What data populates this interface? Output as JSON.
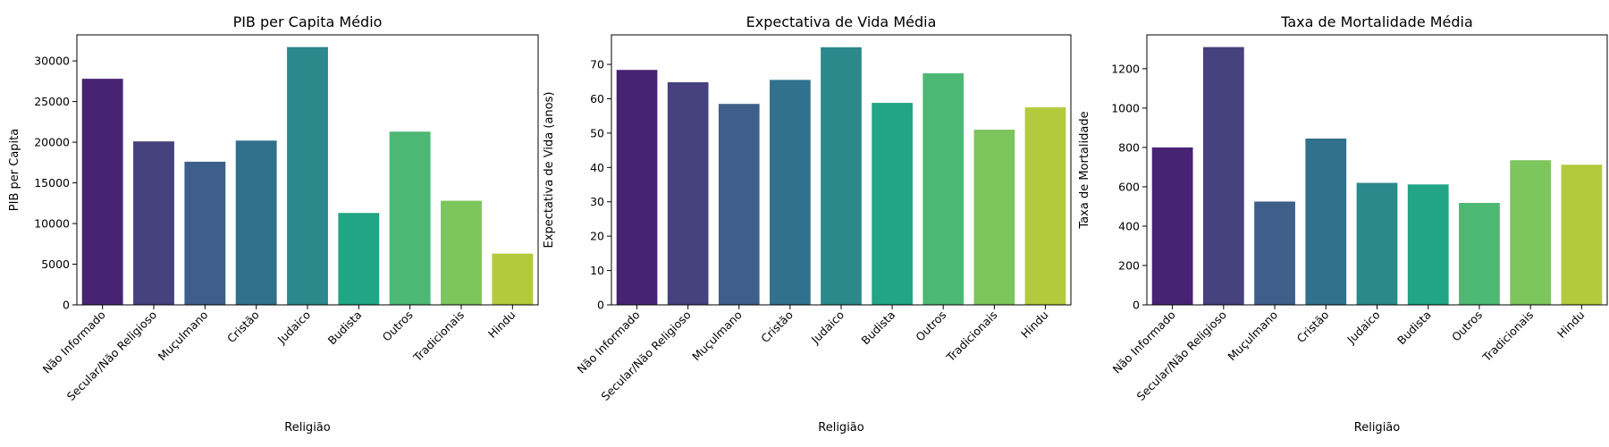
{
  "chart_data": [
    {
      "type": "bar",
      "title": "PIB per Capita Médio",
      "xlabel": "Religião",
      "ylabel": "PIB per Capita",
      "categories": [
        "Não Informado",
        "Secular/Não Religioso",
        "Muçulmano",
        "Cristão",
        "Judaico",
        "Budista",
        "Outros",
        "Tradicionais",
        "Hindu"
      ],
      "values": [
        27800,
        20100,
        17600,
        20200,
        31700,
        11300,
        21300,
        12800,
        6300
      ],
      "ylim": [
        0,
        33200
      ],
      "yticks": [
        0,
        5000,
        10000,
        15000,
        20000,
        25000,
        30000
      ],
      "grid": false
    },
    {
      "type": "bar",
      "title": "Expectativa de Vida Média",
      "xlabel": "Religião",
      "ylabel": "Expectativa de Vida (anos)",
      "categories": [
        "Não Informado",
        "Secular/Não Religioso",
        "Muçulmano",
        "Cristão",
        "Judaico",
        "Budista",
        "Outros",
        "Tradicionais",
        "Hindu"
      ],
      "values": [
        68.4,
        64.8,
        58.5,
        65.5,
        75.0,
        58.8,
        67.4,
        51.0,
        57.5
      ],
      "ylim": [
        0,
        78.6
      ],
      "yticks": [
        0,
        10,
        20,
        30,
        40,
        50,
        60,
        70
      ],
      "grid": false
    },
    {
      "type": "bar",
      "title": "Taxa de Mortalidade Média",
      "xlabel": "Religião",
      "ylabel": "Taxa de Mortalidade",
      "categories": [
        "Não Informado",
        "Secular/Não Religioso",
        "Muçulmano",
        "Cristão",
        "Judaico",
        "Budista",
        "Outros",
        "Tradicionais",
        "Hindu"
      ],
      "values": [
        800,
        1310,
        525,
        845,
        620,
        612,
        518,
        735,
        712
      ],
      "ylim": [
        0,
        1372
      ],
      "yticks": [
        0,
        200,
        400,
        600,
        800,
        1000,
        1200
      ],
      "grid": false
    }
  ],
  "palette": [
    "#482374",
    "#46427f",
    "#3e5f8a",
    "#31718e",
    "#2b898c",
    "#21a585",
    "#4cb874",
    "#7dc55d",
    "#b2ca3c"
  ]
}
